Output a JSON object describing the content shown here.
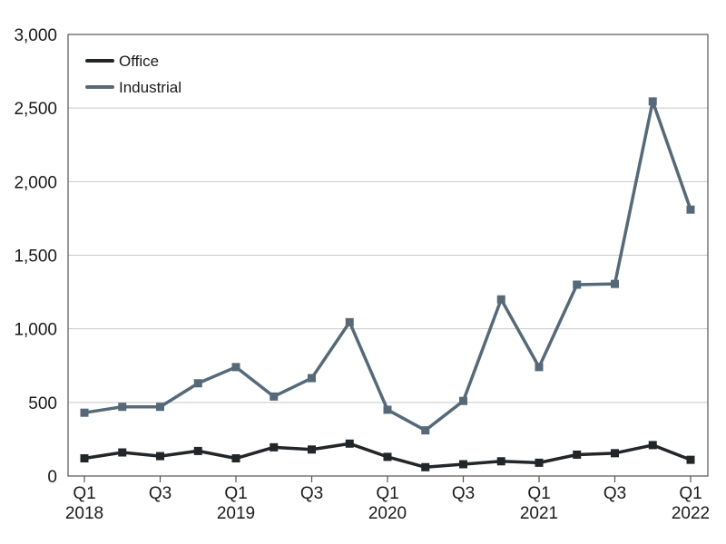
{
  "chart_data": {
    "type": "line",
    "title": "",
    "xlabel": "",
    "ylabel": "",
    "categories": [
      "Q1 2018",
      "Q2 2018",
      "Q3 2018",
      "Q4 2018",
      "Q1 2019",
      "Q2 2019",
      "Q3 2019",
      "Q4 2019",
      "Q1 2020",
      "Q2 2020",
      "Q3 2020",
      "Q4 2020",
      "Q1 2021",
      "Q2 2021",
      "Q3 2021",
      "Q4 2021",
      "Q1 2022"
    ],
    "x_tick_labels": [
      {
        "index": 0,
        "lines": [
          "Q1",
          "2018"
        ]
      },
      {
        "index": 2,
        "lines": [
          "Q3"
        ]
      },
      {
        "index": 4,
        "lines": [
          "Q1",
          "2019"
        ]
      },
      {
        "index": 6,
        "lines": [
          "Q3"
        ]
      },
      {
        "index": 8,
        "lines": [
          "Q1",
          "2020"
        ]
      },
      {
        "index": 10,
        "lines": [
          "Q3"
        ]
      },
      {
        "index": 12,
        "lines": [
          "Q1",
          "2021"
        ]
      },
      {
        "index": 14,
        "lines": [
          "Q3"
        ]
      },
      {
        "index": 16,
        "lines": [
          "Q1",
          "2022"
        ]
      }
    ],
    "y_ticks": [
      0,
      500,
      1000,
      1500,
      2000,
      2500,
      3000
    ],
    "y_tick_labels": [
      "0",
      "500",
      "1,000",
      "1,500",
      "2,000",
      "2,500",
      "3,000"
    ],
    "ylim": [
      0,
      3000
    ],
    "grid": "horizontal",
    "legend_position": "top-left",
    "series": [
      {
        "name": "Office",
        "color": "#222629",
        "marker": "square",
        "values": [
          120,
          160,
          135,
          170,
          120,
          195,
          180,
          220,
          130,
          60,
          80,
          100,
          90,
          145,
          155,
          210,
          110
        ]
      },
      {
        "name": "Industrial",
        "color": "#566978",
        "marker": "square",
        "values": [
          430,
          470,
          470,
          630,
          740,
          540,
          665,
          1045,
          450,
          310,
          510,
          1200,
          740,
          1300,
          1305,
          2545,
          1810
        ]
      }
    ]
  }
}
